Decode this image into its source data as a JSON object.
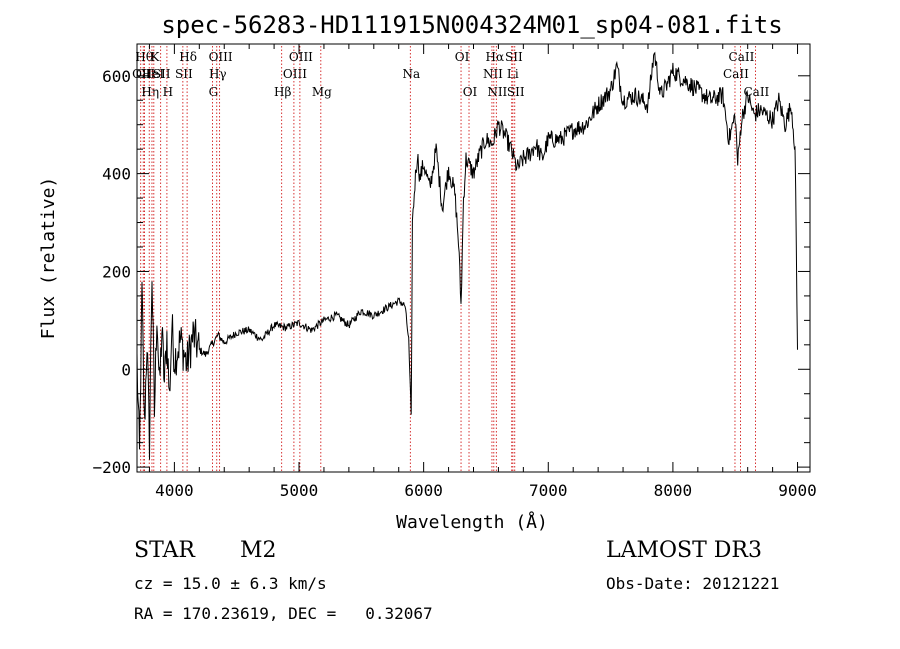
{
  "chart_data": {
    "type": "line",
    "title": "spec-56283-HD111915N004324M01_sp04-081.fits",
    "xlabel": "Wavelength (Å)",
    "ylabel": "Flux (relative)",
    "xlim": [
      3700,
      9100
    ],
    "ylim": [
      -210,
      665
    ],
    "x_ticks": [
      4000,
      5000,
      6000,
      7000,
      8000,
      9000
    ],
    "x_tick_labels": [
      "4000",
      "5000",
      "6000",
      "7000",
      "8000",
      "9000"
    ],
    "y_ticks": [
      -200,
      0,
      200,
      400,
      600
    ],
    "y_tick_labels": [
      "−200",
      "0",
      "200",
      "400",
      "600"
    ],
    "series": [
      {
        "name": "spectrum",
        "color": "#000000",
        "x": [
          3700,
          3720,
          3740,
          3760,
          3780,
          3800,
          3820,
          3840,
          3860,
          3880,
          3900,
          3920,
          3940,
          3960,
          3980,
          4000,
          4050,
          4100,
          4150,
          4200,
          4250,
          4300,
          4350,
          4400,
          4500,
          4600,
          4700,
          4800,
          4900,
          5000,
          5100,
          5200,
          5300,
          5400,
          5500,
          5600,
          5700,
          5800,
          5850,
          5880,
          5900,
          5910,
          5930,
          5950,
          5970,
          6000,
          6050,
          6100,
          6150,
          6200,
          6250,
          6280,
          6300,
          6320,
          6340,
          6400,
          6450,
          6500,
          6550,
          6600,
          6650,
          6700,
          6750,
          6800,
          6850,
          6900,
          6950,
          7000,
          7100,
          7200,
          7300,
          7400,
          7500,
          7550,
          7600,
          7700,
          7800,
          7850,
          7900,
          7950,
          8000,
          8100,
          8200,
          8300,
          8400,
          8450,
          8500,
          8520,
          8550,
          8600,
          8650,
          8700,
          8800,
          8850,
          8900,
          8950,
          8980,
          9000
        ],
        "values": [
          20,
          -180,
          160,
          -120,
          60,
          -150,
          200,
          -90,
          120,
          -40,
          80,
          -30,
          70,
          -60,
          90,
          20,
          60,
          10,
          70,
          40,
          30,
          50,
          70,
          55,
          75,
          80,
          60,
          90,
          85,
          95,
          80,
          100,
          110,
          90,
          120,
          110,
          125,
          140,
          130,
          60,
          -100,
          300,
          380,
          440,
          390,
          420,
          370,
          450,
          330,
          410,
          360,
          260,
          130,
          350,
          430,
          400,
          440,
          470,
          460,
          500,
          480,
          450,
          410,
          430,
          440,
          460,
          430,
          470,
          470,
          490,
          500,
          540,
          570,
          620,
          550,
          560,
          540,
          650,
          560,
          580,
          610,
          590,
          570,
          550,
          560,
          470,
          520,
          420,
          510,
          560,
          520,
          530,
          510,
          550,
          500,
          540,
          450,
          40
        ]
      }
    ],
    "line_markers": [
      {
        "x": 3750,
        "row": 1,
        "label": "Hθ"
      },
      {
        "x": 3730,
        "row": 2,
        "label": "OII"
      },
      {
        "x": 3760,
        "row": 3,
        "label": "OII"
      },
      {
        "x": 3798,
        "row": 4,
        "label": "Hη"
      },
      {
        "x": 3820,
        "row": 2,
        "label": "HeI"
      },
      {
        "x": 3835,
        "row": 1,
        "label": "K"
      },
      {
        "x": 3890,
        "row": 3,
        "label": "SII"
      },
      {
        "x": 3940,
        "row": 4,
        "label": "H"
      },
      {
        "x": 4068,
        "row": 3,
        "label": "SII"
      },
      {
        "x": 4102,
        "row": 1,
        "label": "Hδ"
      },
      {
        "x": 4305,
        "row": 4,
        "label": "G"
      },
      {
        "x": 4340,
        "row": 3,
        "label": "Hγ"
      },
      {
        "x": 4363,
        "row": 1,
        "label": "OIII"
      },
      {
        "x": 4861,
        "row": 4,
        "label": "Hβ"
      },
      {
        "x": 4959,
        "row": 3,
        "label": "OIII"
      },
      {
        "x": 5007,
        "row": 1,
        "label": "OIII"
      },
      {
        "x": 5175,
        "row": 4,
        "label": "Mg"
      },
      {
        "x": 5893,
        "row": 3,
        "label": "Na"
      },
      {
        "x": 6300,
        "row": 1,
        "label": "OI"
      },
      {
        "x": 6364,
        "row": 4,
        "label": "OI"
      },
      {
        "x": 6548,
        "row": 3,
        "label": "NII"
      },
      {
        "x": 6563,
        "row": 1,
        "label": "Hα"
      },
      {
        "x": 6583,
        "row": 4,
        "label": "NII"
      },
      {
        "x": 6707,
        "row": 3,
        "label": "Li"
      },
      {
        "x": 6716,
        "row": 1,
        "label": "SII"
      },
      {
        "x": 6731,
        "row": 4,
        "label": "SII"
      },
      {
        "x": 8498,
        "row": 3,
        "label": "CaII"
      },
      {
        "x": 8542,
        "row": 1,
        "label": "CaII"
      },
      {
        "x": 8662,
        "row": 4,
        "label": "CaII"
      }
    ],
    "grid": false,
    "legend": "none"
  },
  "info": {
    "class_label": "STAR",
    "subclass": "M2",
    "survey": "LAMOST DR3",
    "redshift_line": "cz = 15.0 ± 6.3 km/s",
    "obs_date_line": "Obs-Date: 20121221",
    "coords_line": "RA = 170.23619, DEC =   0.32067"
  },
  "colors": {
    "spectrum": "#000000",
    "marker_line": "#cc0000",
    "axes": "#000000"
  }
}
